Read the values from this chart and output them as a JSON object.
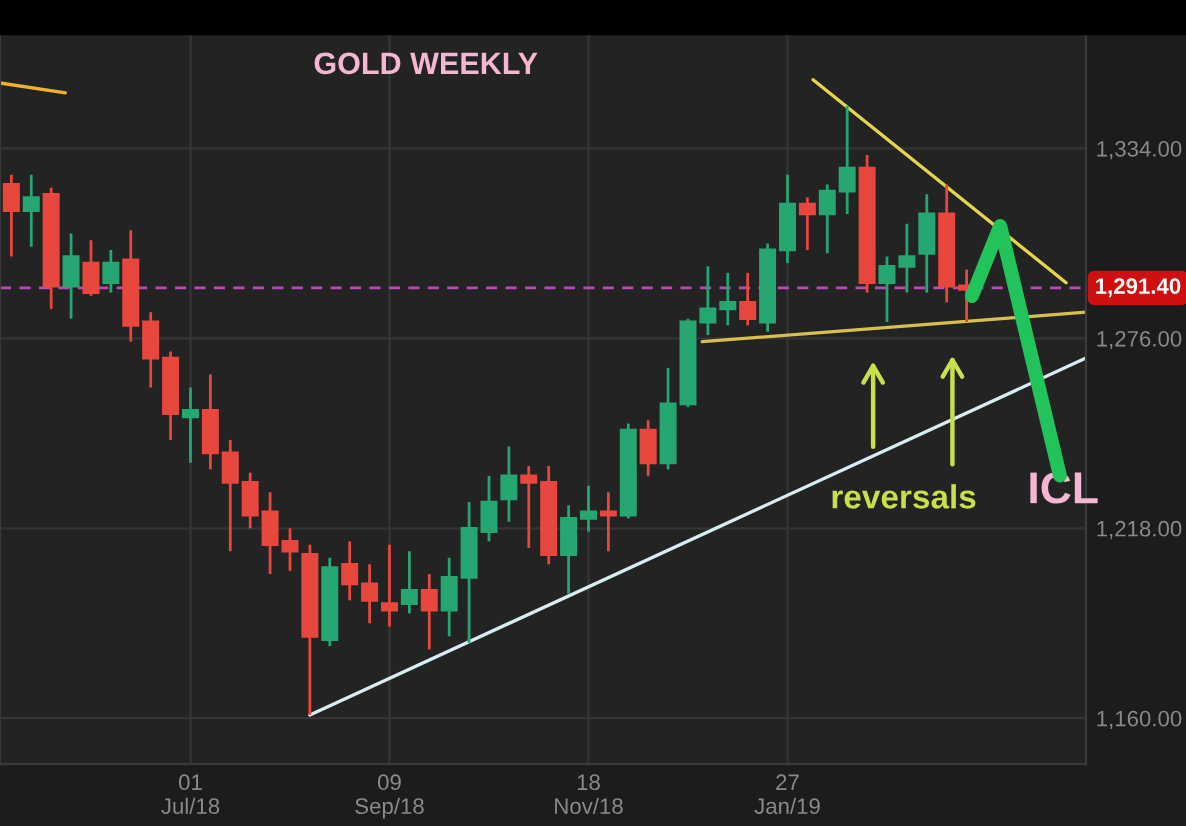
{
  "chart_data": {
    "type": "candlestick",
    "title": "GOLD WEEKLY",
    "x": [
      "2018-04-29",
      "2018-05-06",
      "2018-05-13",
      "2018-05-20",
      "2018-05-27",
      "2018-06-03",
      "2018-06-10",
      "2018-06-17",
      "2018-06-24",
      "2018-07-01",
      "2018-07-08",
      "2018-07-15",
      "2018-07-22",
      "2018-07-29",
      "2018-08-05",
      "2018-08-12",
      "2018-08-19",
      "2018-08-26",
      "2018-09-02",
      "2018-09-09",
      "2018-09-16",
      "2018-09-23",
      "2018-09-30",
      "2018-10-07",
      "2018-10-14",
      "2018-10-21",
      "2018-10-28",
      "2018-11-04",
      "2018-11-11",
      "2018-11-18",
      "2018-11-25",
      "2018-12-02",
      "2018-12-09",
      "2018-12-16",
      "2018-12-23",
      "2018-12-30",
      "2019-01-06",
      "2019-01-13",
      "2019-01-20",
      "2019-01-27",
      "2019-02-03",
      "2019-02-10",
      "2019-02-17",
      "2019-02-24",
      "2019-03-03",
      "2019-03-10",
      "2019-03-17",
      "2019-03-24",
      "2019-03-31"
    ],
    "ohlc": [
      [
        1323,
        1326,
        1301,
        1315
      ],
      [
        1315,
        1326,
        1304,
        1319
      ],
      [
        1320,
        1322,
        1285,
        1292
      ],
      [
        1292,
        1308,
        1282,
        1301
      ],
      [
        1299,
        1306,
        1289,
        1290
      ],
      [
        1293,
        1303,
        1290,
        1299
      ],
      [
        1300,
        1309,
        1275,
        1280
      ],
      [
        1281,
        1284,
        1261,
        1270
      ],
      [
        1270,
        1272,
        1245,
        1253
      ],
      [
        1252,
        1261,
        1238,
        1254
      ],
      [
        1254,
        1265,
        1236,
        1241
      ],
      [
        1241,
        1245,
        1211,
        1232
      ],
      [
        1232,
        1235,
        1218,
        1222
      ],
      [
        1223,
        1229,
        1204,
        1213
      ],
      [
        1214,
        1218,
        1205,
        1211
      ],
      [
        1210,
        1213,
        1161,
        1185
      ],
      [
        1184,
        1209,
        1182,
        1206
      ],
      [
        1207,
        1214,
        1196,
        1201
      ],
      [
        1201,
        1207,
        1189,
        1196
      ],
      [
        1195,
        1213,
        1188,
        1193
      ],
      [
        1195,
        1211,
        1192,
        1199
      ],
      [
        1199,
        1204,
        1181,
        1193
      ],
      [
        1193,
        1209,
        1185,
        1203
      ],
      [
        1203,
        1226,
        1183,
        1218
      ],
      [
        1217,
        1234,
        1214,
        1226
      ],
      [
        1227,
        1243,
        1220,
        1234
      ],
      [
        1234,
        1237,
        1212,
        1232
      ],
      [
        1232,
        1237,
        1207,
        1210
      ],
      [
        1210,
        1225,
        1198,
        1221
      ],
      [
        1221,
        1231,
        1217,
        1223
      ],
      [
        1223,
        1229,
        1211,
        1222
      ],
      [
        1222,
        1250,
        1221,
        1248
      ],
      [
        1248,
        1251,
        1234,
        1238
      ],
      [
        1238,
        1267,
        1236,
        1256
      ],
      [
        1256,
        1282,
        1255,
        1281
      ],
      [
        1281,
        1298,
        1277,
        1285
      ],
      [
        1285,
        1296,
        1280,
        1287
      ],
      [
        1287,
        1296,
        1280,
        1282
      ],
      [
        1281,
        1305,
        1278,
        1303
      ],
      [
        1303,
        1326,
        1299,
        1317
      ],
      [
        1317,
        1319,
        1303,
        1314
      ],
      [
        1314,
        1323,
        1302,
        1321
      ],
      [
        1321,
        1347,
        1314,
        1328
      ],
      [
        1328,
        1332,
        1290,
        1293
      ],
      [
        1293,
        1301,
        1281,
        1298
      ],
      [
        1298,
        1311,
        1290,
        1301
      ],
      [
        1302,
        1320,
        1290,
        1314
      ],
      [
        1314,
        1323,
        1287,
        1292
      ],
      [
        1292,
        1297,
        1281,
        1291
      ]
    ],
    "colors": [
      "#e8473e",
      "#26a671",
      "#e8473e",
      "#26a671",
      "#e8473e",
      "#26a671",
      "#e8473e",
      "#e8473e",
      "#e8473e",
      "#26a671",
      "#e8473e",
      "#e8473e",
      "#e8473e",
      "#e8473e",
      "#e8473e",
      "#e8473e",
      "#26a671",
      "#e8473e",
      "#e8473e",
      "#e8473e",
      "#26a671",
      "#e8473e",
      "#26a671",
      "#26a671",
      "#26a671",
      "#26a671",
      "#e8473e",
      "#e8473e",
      "#26a671",
      "#26a671",
      "#e8473e",
      "#26a671",
      "#e8473e",
      "#26a671",
      "#26a671",
      "#26a671",
      "#26a671",
      "#e8473e",
      "#26a671",
      "#26a671",
      "#e8473e",
      "#26a671",
      "#26a671",
      "#e8473e",
      "#26a671",
      "#26a671",
      "#26a671",
      "#e8473e",
      "#e8473e"
    ],
    "series": [
      {
        "type": "line",
        "color": "#d8ecf4",
        "x": [
          "2018-08-12",
          "2019-05-12"
        ],
        "values": [
          1161,
          1270
        ]
      },
      {
        "type": "line",
        "color": "#e6d44a",
        "x": [
          "2019-02-05",
          "2019-05-05"
        ],
        "values": [
          1355,
          1293
        ]
      },
      {
        "type": "line",
        "color": "#d8c050",
        "x": [
          "2018-12-28",
          "2019-05-12"
        ],
        "values": [
          1275,
          1284
        ]
      },
      {
        "type": "line",
        "color": "#f0b030",
        "x": [
          "2018-04-25",
          "2018-05-18"
        ],
        "values": [
          1354,
          1351
        ]
      }
    ],
    "xlim": [
      "2018-04-25",
      "2019-05-12"
    ],
    "xticks": [
      {
        "value": "2018-07-01",
        "label": "01\nJul/18"
      },
      {
        "value": "2018-09-09",
        "label": "09\nSep/18"
      },
      {
        "value": "2018-11-18",
        "label": "18\nNov/18"
      },
      {
        "value": "2019-01-27",
        "label": "27\nJan/19"
      }
    ],
    "ylim": [
      1146,
      1369
    ],
    "yticks": [
      {
        "value": 1160,
        "label": "1,160.00"
      },
      {
        "value": 1218,
        "label": "1,218.00"
      },
      {
        "value": 1276,
        "label": "1,276.00"
      },
      {
        "value": 1334,
        "label": "1,334.00"
      }
    ],
    "ref_lines": [
      {
        "axis": "y",
        "value": 1291.4,
        "label": "1,291.40",
        "color": "#b84ab8",
        "line_style": "dashed"
      }
    ],
    "annotations": [
      "reversals",
      "ICL"
    ],
    "grid": true
  }
}
